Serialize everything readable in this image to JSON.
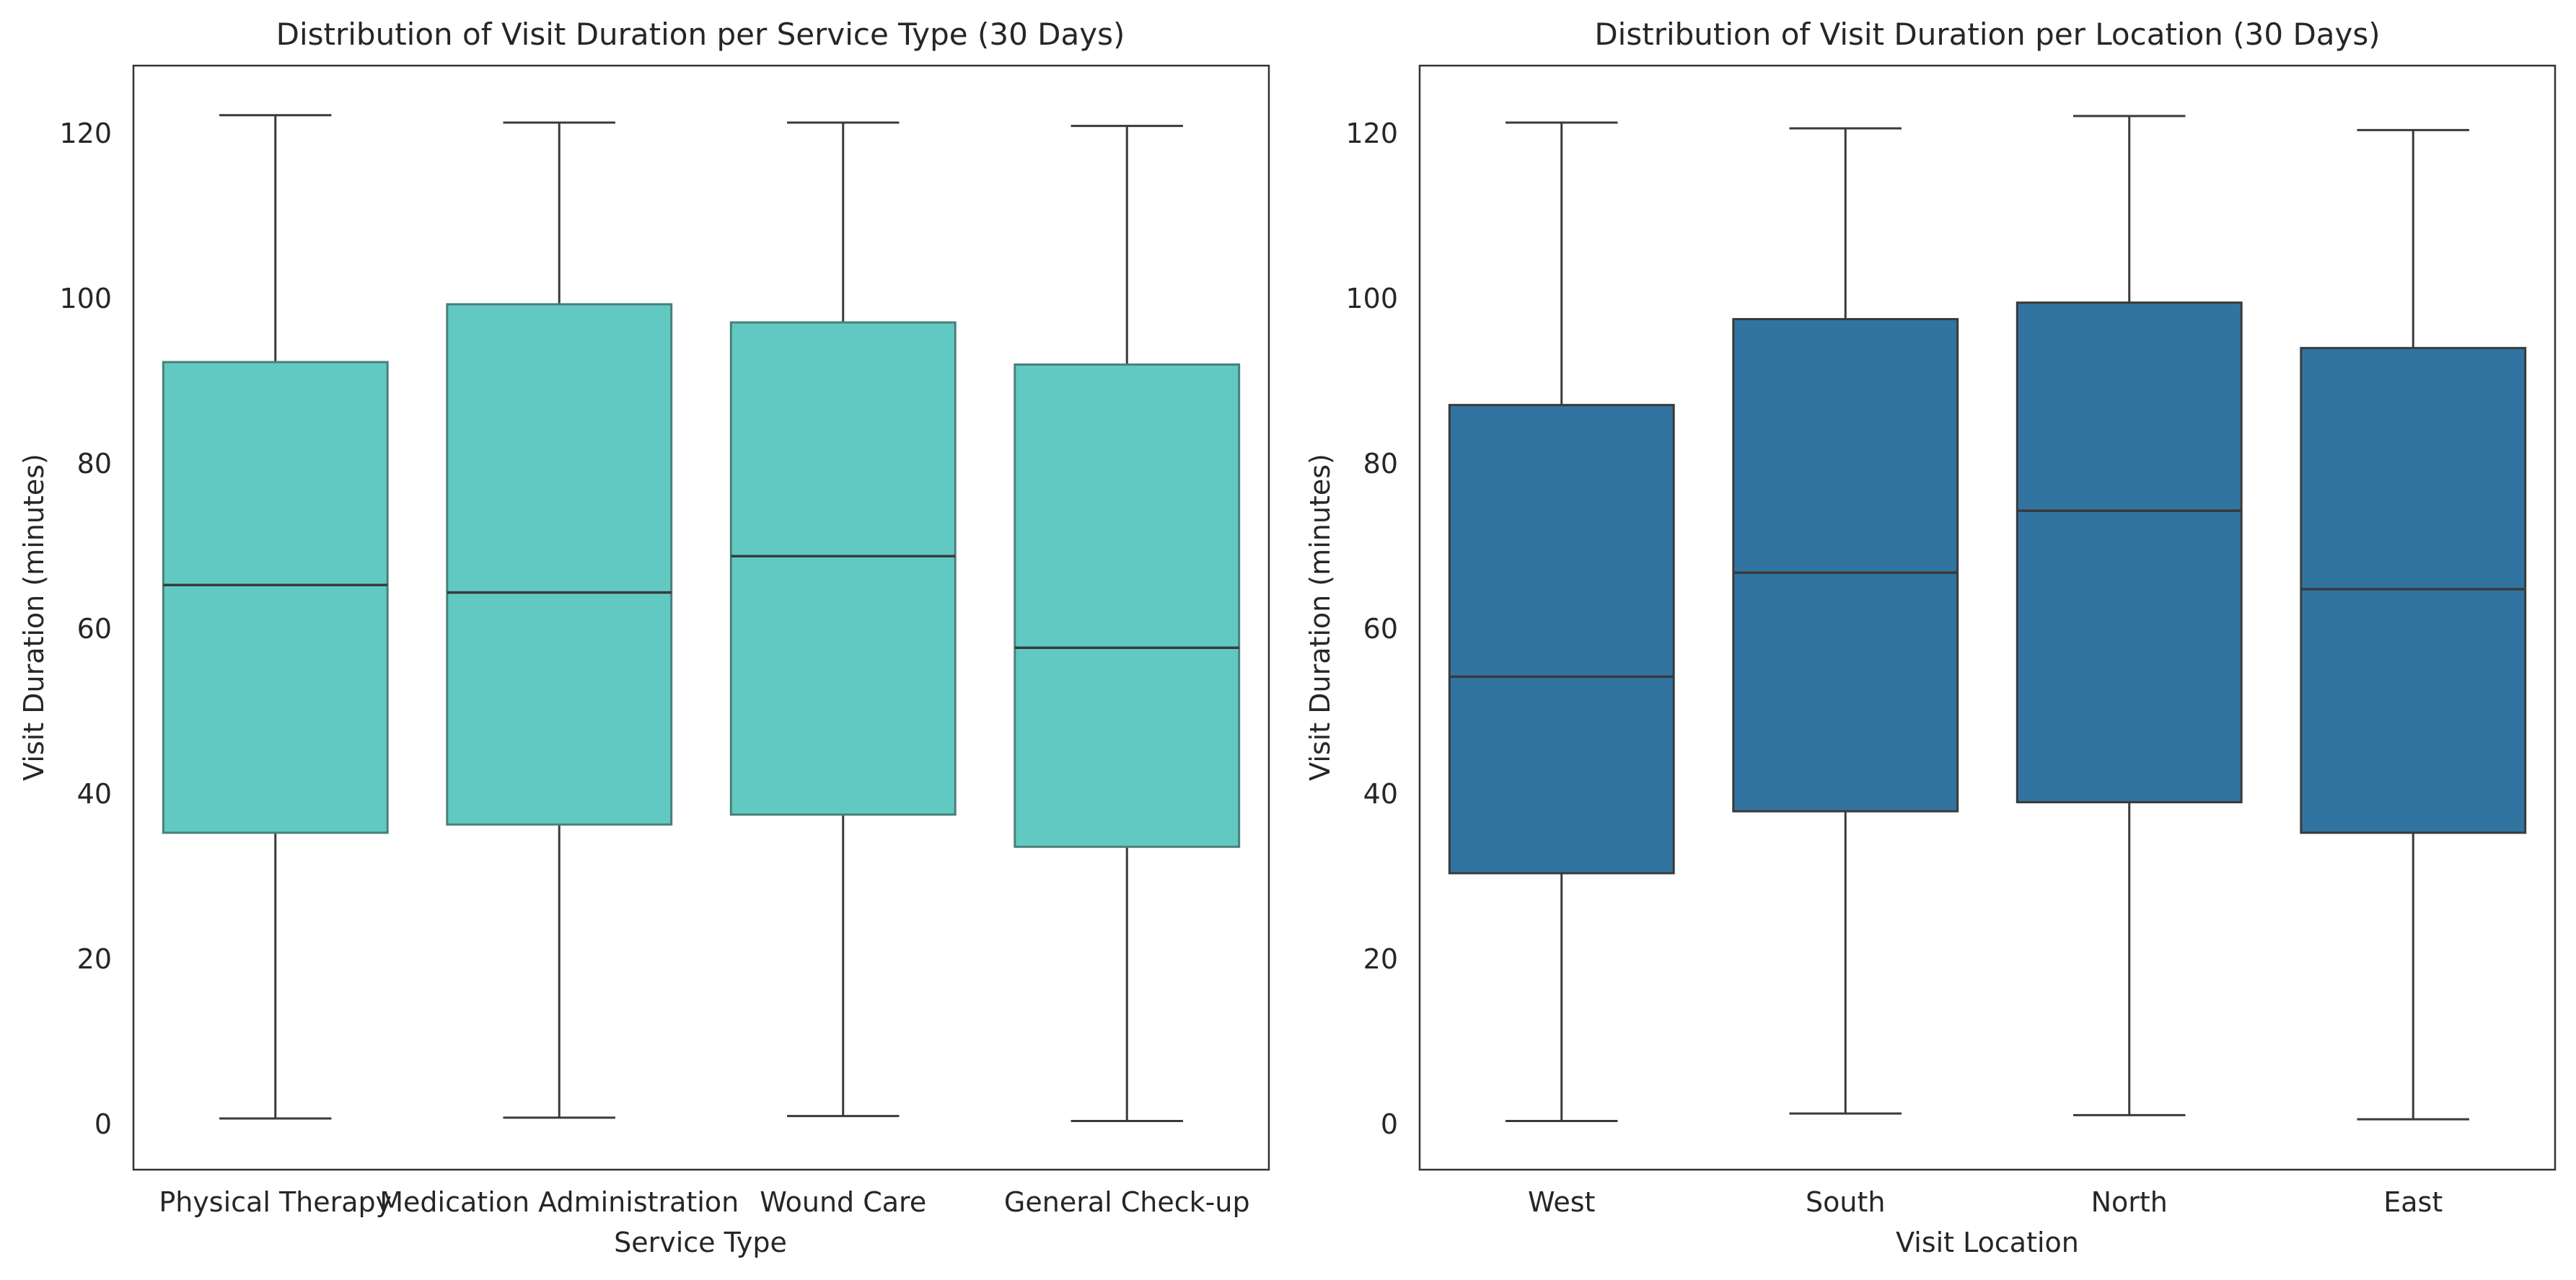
{
  "chart_data": [
    {
      "type": "box",
      "title": "Distribution of Visit Duration per Service Type (30 Days)",
      "xlabel": "Service Type",
      "ylabel": "Visit Duration (minutes)",
      "ylim": [
        -5.5,
        128.2
      ],
      "yticks": [
        0,
        20,
        40,
        60,
        80,
        100,
        120
      ],
      "grid": false,
      "box_color": "#62c9c2",
      "categories": [
        "Physical Therapy",
        "Medication Administration",
        "Wound Care",
        "General Check-up"
      ],
      "boxes": [
        {
          "whisker_low": 0.7,
          "q1": 35.3,
          "median": 65.3,
          "q3": 92.3,
          "whisker_high": 122.2
        },
        {
          "whisker_low": 0.8,
          "q1": 36.3,
          "median": 64.4,
          "q3": 99.3,
          "whisker_high": 121.3
        },
        {
          "whisker_low": 1.0,
          "q1": 37.5,
          "median": 68.8,
          "q3": 97.1,
          "whisker_high": 121.3
        },
        {
          "whisker_low": 0.4,
          "q1": 33.6,
          "median": 57.7,
          "q3": 92.0,
          "whisker_high": 120.9
        }
      ]
    },
    {
      "type": "box",
      "title": "Distribution of Visit Duration per Location (30 Days)",
      "xlabel": "Visit Location",
      "ylabel": "Visit Duration (minutes)",
      "ylim": [
        -5.5,
        128.2
      ],
      "yticks": [
        0,
        20,
        40,
        60,
        80,
        100,
        120
      ],
      "grid": false,
      "box_color": "#3274a1",
      "categories": [
        "West",
        "South",
        "North",
        "East"
      ],
      "boxes": [
        {
          "whisker_low": 0.4,
          "q1": 30.4,
          "median": 54.2,
          "q3": 87.1,
          "whisker_high": 121.3
        },
        {
          "whisker_low": 1.3,
          "q1": 37.9,
          "median": 66.8,
          "q3": 97.5,
          "whisker_high": 120.6
        },
        {
          "whisker_low": 1.1,
          "q1": 39.0,
          "median": 74.3,
          "q3": 99.5,
          "whisker_high": 122.1
        },
        {
          "whisker_low": 0.6,
          "q1": 35.3,
          "median": 64.8,
          "q3": 94.0,
          "whisker_high": 120.4
        }
      ]
    }
  ]
}
